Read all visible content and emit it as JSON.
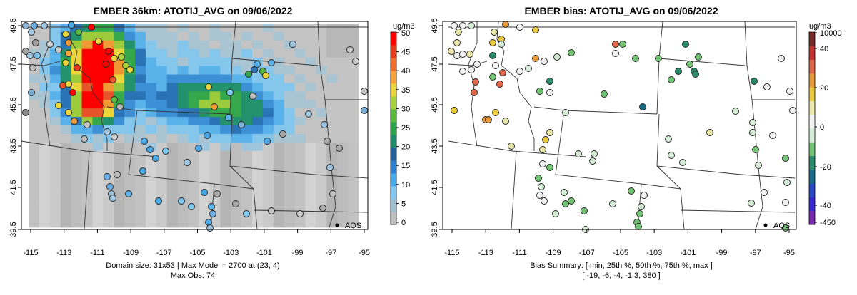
{
  "left_map": {
    "title": "EMBER 36km: ATOTIJ_AVG on 09/06/2022",
    "colorbar": {
      "unit": "ug/m3",
      "labels": [
        "0",
        "5",
        "10",
        "15",
        "20",
        "25",
        "30",
        "35",
        "40",
        "45",
        "50"
      ],
      "colors": [
        "#bfbfbf",
        "#9fbfd0",
        "#7fc8ef",
        "#4aa9e8",
        "#2f7fcf",
        "#21609b",
        "#1f8a6a",
        "#2aa34a",
        "#58bb3e",
        "#a7d23c",
        "#ead53a",
        "#f4a43a",
        "#ec6d2d",
        "#e53b1f",
        "#ff0000"
      ]
    },
    "footer": [
      "Domain size: 31x53 | Max Model = 2700 at (23, 4)",
      "Max Obs: 74"
    ],
    "marker_label": "AQS"
  },
  "right_map": {
    "title": "EMBER bias: ATOTIJ_AVG on 09/06/2022",
    "colorbar": {
      "unit": "ug/m3",
      "labels": [
        "10000",
        "40",
        "20",
        "0",
        "-20",
        "-40",
        "-450"
      ],
      "colors": [
        "#7b2a2a",
        "#c93030",
        "#e0664a",
        "#e89a3a",
        "#e9c93e",
        "#e8e6a8",
        "#f2f2f2",
        "#d7ecd7",
        "#74c476",
        "#2a8a6a",
        "#1a6a8a",
        "#2a4ac9",
        "#3a2ad8",
        "#7a2ab0"
      ]
    },
    "footer": [
      "Bias Summary: [ min, 25th %, 50th %, 75th %, max ]",
      "[ -19,  -6,  -4,  -1.3,  380 ]"
    ],
    "marker_label": "AQS"
  },
  "axes": {
    "x_ticks": [
      "-115",
      "-113",
      "-111",
      "-109",
      "-107",
      "-105",
      "-103",
      "-101",
      "-99",
      "-97",
      "-95"
    ],
    "y_ticks": [
      "39.5",
      "41.5",
      "43.5",
      "45.5",
      "47.5",
      "49.5"
    ]
  }
}
